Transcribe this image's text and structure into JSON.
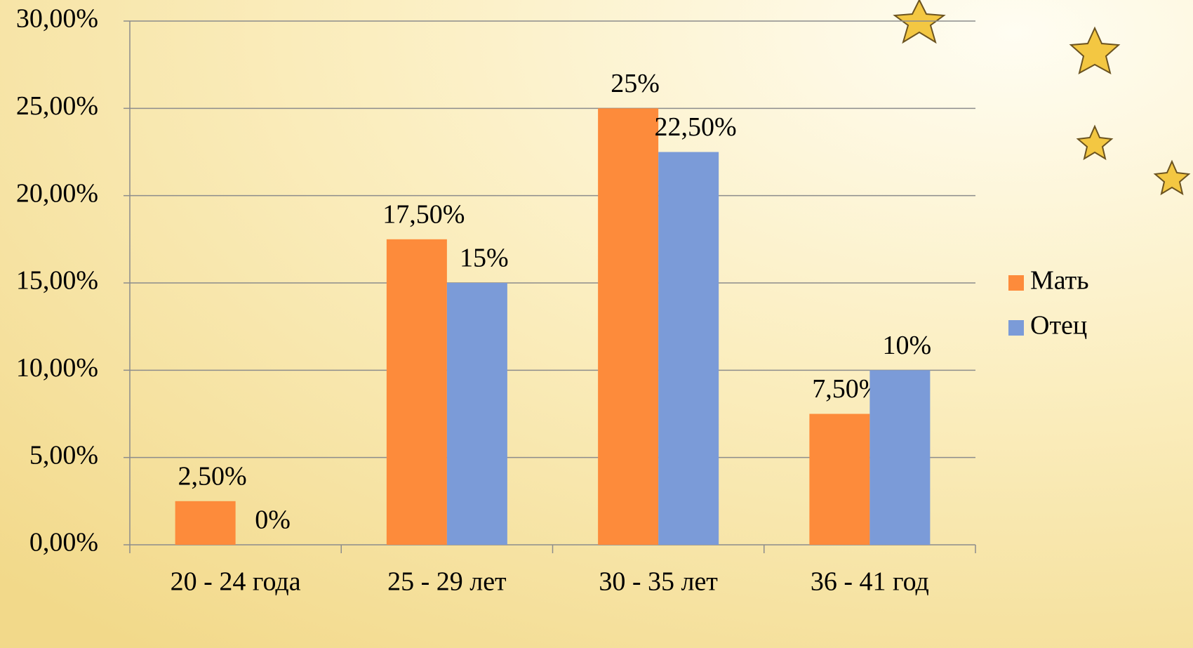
{
  "chart_data": {
    "type": "bar",
    "categories": [
      "20 - 24 года",
      "25 - 29 лет",
      "30 - 35 лет",
      "36 - 41 год"
    ],
    "series": [
      {
        "name": "Мать",
        "color": "#fd8b3b",
        "values": [
          2.5,
          17.5,
          25,
          7.5
        ],
        "value_labels": [
          "2,50%",
          "17,50%",
          "25%",
          "7,50%"
        ]
      },
      {
        "name": "Отец",
        "color": "#7b9bd8",
        "values": [
          0,
          15,
          22.5,
          10
        ],
        "value_labels": [
          "0%",
          "15%",
          "22,50%",
          "10%"
        ]
      }
    ],
    "ylim": [
      0,
      30
    ],
    "yticks": [
      {
        "value": 0,
        "label": "0,00%"
      },
      {
        "value": 5,
        "label": "5,00%"
      },
      {
        "value": 10,
        "label": "10,00%"
      },
      {
        "value": 15,
        "label": "15,00%"
      },
      {
        "value": 20,
        "label": "20,00%"
      },
      {
        "value": 25,
        "label": "25,00%"
      },
      {
        "value": 30,
        "label": "30,00%"
      }
    ],
    "grid": true,
    "legend": "right"
  }
}
